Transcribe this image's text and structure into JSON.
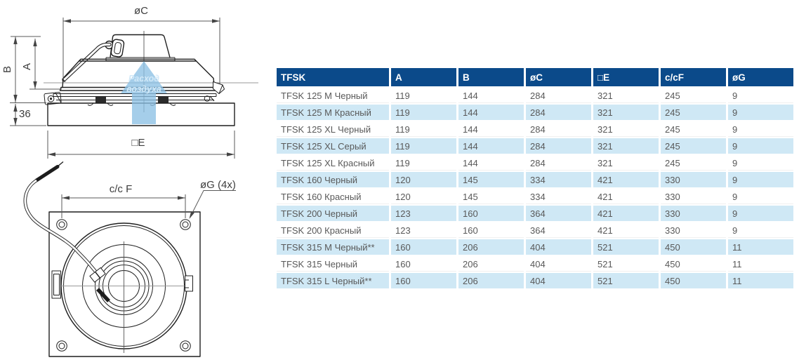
{
  "diagram": {
    "side_view": {
      "dim_oc": "øC",
      "dim_b": "B",
      "dim_a": "A",
      "dim_36": "36",
      "dim_e": "□E",
      "airflow_label_line1": "Расход",
      "airflow_label_line2": "воздуха",
      "airflow_arrow_color": "#8cc0e4"
    },
    "bottom_view": {
      "dim_ccf": "c/c F",
      "dim_og": "øG (4x)"
    }
  },
  "table": {
    "columns": [
      "TFSK",
      "A",
      "B",
      "øC",
      "□E",
      "c/cF",
      "øG"
    ],
    "rows": [
      {
        "model": "TFSK 125 M Черный",
        "values": [
          "119",
          "144",
          "284",
          "321",
          "245",
          "9"
        ]
      },
      {
        "model": "TFSK 125 M Красный",
        "values": [
          "119",
          "144",
          "284",
          "321",
          "245",
          "9"
        ]
      },
      {
        "model": "TFSK 125 XL Черный",
        "values": [
          "119",
          "144",
          "284",
          "321",
          "245",
          "9"
        ]
      },
      {
        "model": "TFSK 125 XL Серый",
        "values": [
          "119",
          "144",
          "284",
          "321",
          "245",
          "9"
        ]
      },
      {
        "model": "TFSK 125 XL Красный",
        "values": [
          "119",
          "144",
          "284",
          "321",
          "245",
          "9"
        ]
      },
      {
        "model": "TFSK 160 Черный",
        "values": [
          "120",
          "145",
          "334",
          "421",
          "330",
          "9"
        ]
      },
      {
        "model": "TFSK 160 Красный",
        "values": [
          "120",
          "145",
          "334",
          "421",
          "330",
          "9"
        ]
      },
      {
        "model": "TFSK 200 Черный",
        "values": [
          "123",
          "160",
          "364",
          "421",
          "330",
          "9"
        ]
      },
      {
        "model": "TFSK 200 Красный",
        "values": [
          "123",
          "160",
          "364",
          "421",
          "330",
          "9"
        ]
      },
      {
        "model": "TFSK 315 M Черный**",
        "values": [
          "160",
          "206",
          "404",
          "521",
          "450",
          "11"
        ]
      },
      {
        "model": "TFSK 315 Черный",
        "values": [
          "160",
          "206",
          "404",
          "521",
          "450",
          "11"
        ]
      },
      {
        "model": "TFSK 315 L Черный**",
        "values": [
          "160",
          "206",
          "404",
          "521",
          "450",
          "11"
        ]
      }
    ],
    "colors": {
      "header_bg": "#0b4a8a",
      "header_text": "#ffffff",
      "alt_row_bg": "#cfe8f5",
      "body_text": "#595959"
    }
  }
}
